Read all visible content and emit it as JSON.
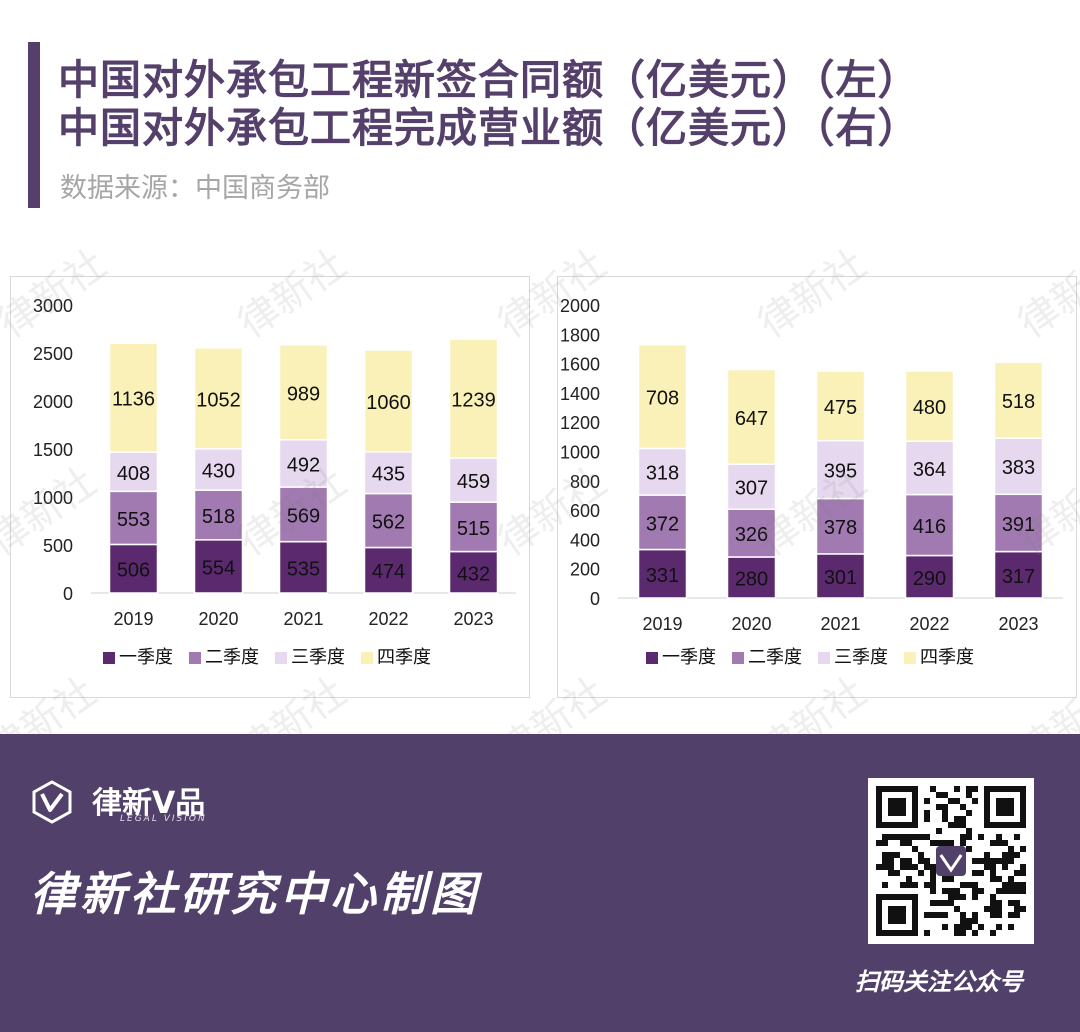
{
  "header": {
    "title_line1": "中国对外承包工程新签合同额（亿美元）（左）",
    "title_line2": "中国对外承包工程完成营业额（亿美元）（右）",
    "source": "数据来源：中国商务部"
  },
  "watermark_text": "律新社",
  "chart_data": [
    {
      "type": "bar",
      "stacked": true,
      "title": "中国对外承包工程新签合同额（亿美元）",
      "categories": [
        "2019",
        "2020",
        "2021",
        "2022",
        "2023"
      ],
      "series": [
        {
          "name": "一季度",
          "color": "#5b2a6e",
          "values": [
            506,
            554,
            535,
            474,
            432
          ]
        },
        {
          "name": "二季度",
          "color": "#a07ab0",
          "values": [
            553,
            518,
            569,
            562,
            515
          ]
        },
        {
          "name": "三季度",
          "color": "#e6d8ee",
          "values": [
            408,
            430,
            492,
            435,
            459
          ]
        },
        {
          "name": "四季度",
          "color": "#faf1b9",
          "values": [
            1136,
            1052,
            989,
            1060,
            1239
          ]
        }
      ],
      "ylim": [
        0,
        3000
      ],
      "yticks": [
        0,
        500,
        1000,
        1500,
        2000,
        2500,
        3000
      ],
      "legend": "bottom"
    },
    {
      "type": "bar",
      "stacked": true,
      "title": "中国对外承包工程完成营业额（亿美元）",
      "categories": [
        "2019",
        "2020",
        "2021",
        "2022",
        "2023"
      ],
      "series": [
        {
          "name": "一季度",
          "color": "#5b2a6e",
          "values": [
            331,
            280,
            301,
            290,
            317
          ]
        },
        {
          "name": "二季度",
          "color": "#a07ab0",
          "values": [
            372,
            326,
            378,
            416,
            391
          ]
        },
        {
          "name": "三季度",
          "color": "#e6d8ee",
          "values": [
            318,
            307,
            395,
            364,
            383
          ]
        },
        {
          "name": "四季度",
          "color": "#faf1b9",
          "values": [
            708,
            647,
            475,
            480,
            518
          ]
        }
      ],
      "ylim": [
        0,
        2000
      ],
      "yticks": [
        0,
        200,
        400,
        600,
        800,
        1000,
        1200,
        1400,
        1600,
        1800,
        2000
      ],
      "legend": "bottom"
    }
  ],
  "footer": {
    "brand_name": "律新V品",
    "brand_sub": "LEGAL VISION",
    "title": "律新社研究中心制图",
    "qr_caption": "扫码关注公众号"
  }
}
